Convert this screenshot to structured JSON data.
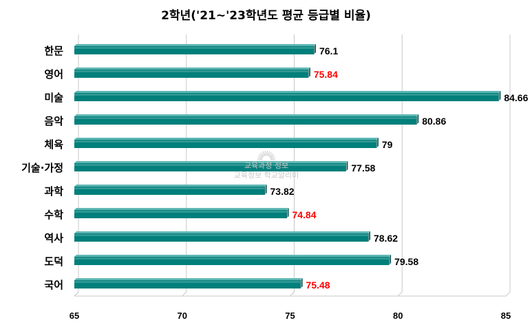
{
  "chart_data": {
    "type": "bar",
    "orientation": "horizontal",
    "title": "2학년('21~'23학년도 평균 등급별 비율)",
    "categories": [
      "한문",
      "영어",
      "미술",
      "음악",
      "체육",
      "기술·가정",
      "과학",
      "수학",
      "역사",
      "도덕",
      "국어"
    ],
    "values": [
      76.1,
      75.84,
      84.66,
      80.86,
      79,
      77.58,
      73.82,
      74.84,
      78.62,
      79.58,
      75.48
    ],
    "value_labels": [
      "76.1",
      "75.84",
      "84.66",
      "80.86",
      "79",
      "77.58",
      "73.82",
      "74.84",
      "78.62",
      "79.58",
      "75.48"
    ],
    "highlighted": [
      false,
      true,
      false,
      false,
      false,
      false,
      false,
      true,
      false,
      false,
      true
    ],
    "xlim": [
      65,
      85
    ],
    "xticks": [
      "65",
      "70",
      "75",
      "80",
      "85"
    ],
    "grid": true,
    "bar_color": "#007f7b",
    "label_color": "#000000",
    "highlight_color": "#ff0000"
  },
  "watermark": {
    "line1": "교육과정 정보",
    "line2": "교육정보 학교알리미"
  }
}
